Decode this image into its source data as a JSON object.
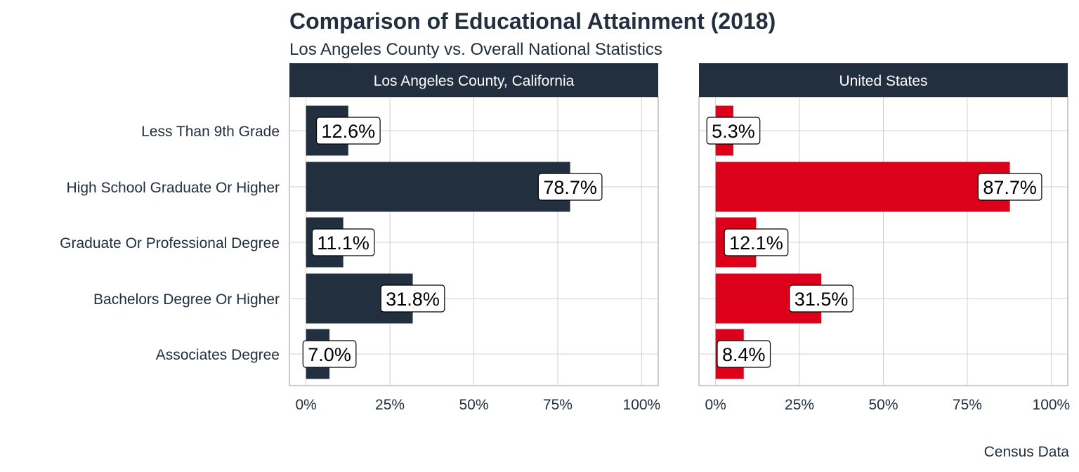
{
  "title": "Comparison of Educational Attainment (2018)",
  "subtitle": "Los Angeles County vs. Overall National Statistics",
  "caption": "Census Data",
  "chart_data": {
    "type": "bar",
    "orientation": "horizontal",
    "categories": [
      "Less Than 9th Grade",
      "High School Graduate Or Higher",
      "Graduate Or Professional Degree",
      "Bachelors Degree Or Higher",
      "Associates Degree"
    ],
    "xlim": [
      0,
      100
    ],
    "x_ticks": [
      "0%",
      "25%",
      "50%",
      "75%",
      "100%"
    ],
    "grid": true,
    "panels": [
      {
        "name": "Los Angeles County, California",
        "color": "#222f3e",
        "values": [
          12.6,
          78.7,
          11.1,
          31.8,
          7.0
        ],
        "labels": [
          "12.6%",
          "78.7%",
          "11.1%",
          "31.8%",
          "7.0%"
        ]
      },
      {
        "name": "United States",
        "color": "#dc001a",
        "values": [
          5.3,
          87.7,
          12.1,
          31.5,
          8.4
        ],
        "labels": [
          "5.3%",
          "87.7%",
          "12.1%",
          "31.5%",
          "8.4%"
        ]
      }
    ]
  },
  "colors": {
    "strip_background": "#222f3e",
    "strip_text": "#ffffff",
    "grid": "#d0d0d0"
  }
}
